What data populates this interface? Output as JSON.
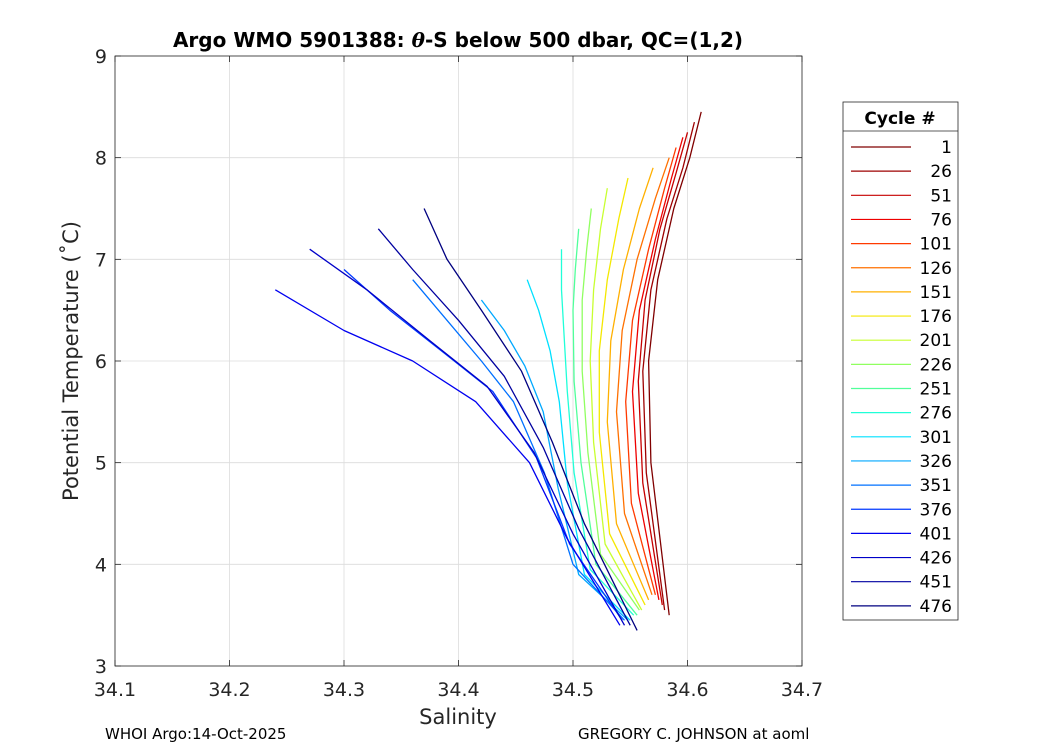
{
  "chart_data": {
    "type": "line",
    "title_prefix": "Argo WMO 5901388: ",
    "title_theta": "θ",
    "title_suffix": "-S below 500 dbar,  QC=(1,2)",
    "xlabel": "Salinity",
    "ylabel": "Potential Temperature (˚C)",
    "xlim": [
      34.1,
      34.7
    ],
    "ylim": [
      3,
      9
    ],
    "xticks": [
      34.1,
      34.2,
      34.3,
      34.4,
      34.5,
      34.6,
      34.7
    ],
    "xtick_labels": [
      "34.1",
      "34.2",
      "34.3",
      "34.4",
      "34.5",
      "34.6",
      "34.7"
    ],
    "yticks": [
      3,
      4,
      5,
      6,
      7,
      8,
      9
    ],
    "ytick_labels": [
      "3",
      "4",
      "5",
      "6",
      "7",
      "8",
      "9"
    ],
    "grid": true,
    "legend_title": "Cycle #",
    "legend_position": "right-outside",
    "legend": [
      {
        "label": "1",
        "color": "#800000"
      },
      {
        "label": "26",
        "color": "#9e0000"
      },
      {
        "label": "51",
        "color": "#c60000"
      },
      {
        "label": "76",
        "color": "#ee0000"
      },
      {
        "label": "101",
        "color": "#ff3a00"
      },
      {
        "label": "126",
        "color": "#ff7000"
      },
      {
        "label": "151",
        "color": "#ffb000"
      },
      {
        "label": "176",
        "color": "#f4e800"
      },
      {
        "label": "201",
        "color": "#c8ff30"
      },
      {
        "label": "226",
        "color": "#90ff60"
      },
      {
        "label": "251",
        "color": "#50ff9a"
      },
      {
        "label": "276",
        "color": "#20ffd8"
      },
      {
        "label": "301",
        "color": "#00e0ff"
      },
      {
        "label": "326",
        "color": "#00a8ff"
      },
      {
        "label": "351",
        "color": "#0070ff"
      },
      {
        "label": "376",
        "color": "#0038ff"
      },
      {
        "label": "401",
        "color": "#0000f0"
      },
      {
        "label": "426",
        "color": "#0000c8"
      },
      {
        "label": "451",
        "color": "#0000a0"
      },
      {
        "label": "476",
        "color": "#000080"
      }
    ],
    "series": [
      {
        "name": "1",
        "color": "#800000",
        "x": [
          34.612,
          34.602,
          34.588,
          34.574,
          34.566,
          34.568,
          34.584
        ],
        "y": [
          8.45,
          8.0,
          7.5,
          6.8,
          6.0,
          5.0,
          3.5
        ]
      },
      {
        "name": "26",
        "color": "#9e0000",
        "x": [
          34.606,
          34.596,
          34.582,
          34.568,
          34.561,
          34.564,
          34.58
        ],
        "y": [
          8.35,
          7.9,
          7.4,
          6.7,
          5.9,
          4.9,
          3.55
        ]
      },
      {
        "name": "51",
        "color": "#c60000",
        "x": [
          34.6,
          34.59,
          34.576,
          34.563,
          34.557,
          34.561,
          34.578
        ],
        "y": [
          8.25,
          7.85,
          7.3,
          6.6,
          5.8,
          4.8,
          3.6
        ]
      },
      {
        "name": "76",
        "color": "#ee0000",
        "x": [
          34.596,
          34.586,
          34.572,
          34.558,
          34.552,
          34.557,
          34.575
        ],
        "y": [
          8.2,
          7.8,
          7.2,
          6.5,
          5.7,
          4.7,
          3.65
        ]
      },
      {
        "name": "101",
        "color": "#ff3a00",
        "x": [
          34.59,
          34.58,
          34.566,
          34.552,
          34.546,
          34.551,
          34.572
        ],
        "y": [
          8.1,
          7.7,
          7.1,
          6.4,
          5.6,
          4.6,
          3.7
        ]
      },
      {
        "name": "126",
        "color": "#ff7000",
        "x": [
          34.584,
          34.572,
          34.556,
          34.543,
          34.538,
          34.545,
          34.569
        ],
        "y": [
          8.0,
          7.6,
          7.0,
          6.3,
          5.5,
          4.5,
          3.7
        ]
      },
      {
        "name": "151",
        "color": "#ffb000",
        "x": [
          34.57,
          34.558,
          34.544,
          34.533,
          34.53,
          34.538,
          34.566
        ],
        "y": [
          7.9,
          7.5,
          6.9,
          6.2,
          5.4,
          4.4,
          3.65
        ]
      },
      {
        "name": "176",
        "color": "#f4e800",
        "x": [
          34.548,
          34.54,
          34.53,
          34.523,
          34.523,
          34.532,
          34.563
        ],
        "y": [
          7.8,
          7.4,
          6.8,
          6.1,
          5.3,
          4.3,
          3.6
        ]
      },
      {
        "name": "201",
        "color": "#c8ff30",
        "x": [
          34.53,
          34.524,
          34.518,
          34.515,
          34.518,
          34.528,
          34.56
        ],
        "y": [
          7.7,
          7.3,
          6.7,
          6.0,
          5.2,
          4.2,
          3.55
        ]
      },
      {
        "name": "226",
        "color": "#90ff60",
        "x": [
          34.516,
          34.512,
          34.508,
          34.508,
          34.513,
          34.524,
          34.558
        ],
        "y": [
          7.5,
          7.1,
          6.6,
          5.9,
          5.1,
          4.1,
          3.55
        ]
      },
      {
        "name": "251",
        "color": "#50ff9a",
        "x": [
          34.505,
          34.502,
          34.5,
          34.501,
          34.507,
          34.52,
          34.556
        ],
        "y": [
          7.3,
          6.9,
          6.5,
          5.8,
          5.0,
          4.0,
          3.5
        ]
      },
      {
        "name": "276",
        "color": "#20ffd8",
        "x": [
          34.49,
          34.49,
          34.492,
          34.495,
          34.501,
          34.515,
          34.553
        ],
        "y": [
          7.1,
          6.7,
          6.3,
          5.7,
          4.9,
          3.95,
          3.5
        ]
      },
      {
        "name": "301",
        "color": "#00e0ff",
        "x": [
          34.46,
          34.47,
          34.48,
          34.488,
          34.495,
          34.51,
          34.55
        ],
        "y": [
          6.8,
          6.5,
          6.1,
          5.6,
          4.8,
          3.9,
          3.45
        ]
      },
      {
        "name": "326",
        "color": "#00a8ff",
        "x": [
          34.42,
          34.44,
          34.458,
          34.474,
          34.487,
          34.505,
          34.548
        ],
        "y": [
          6.6,
          6.3,
          5.95,
          5.5,
          4.75,
          3.9,
          3.45
        ]
      },
      {
        "name": "351",
        "color": "#0070ff",
        "x": [
          34.36,
          34.39,
          34.42,
          34.448,
          34.475,
          34.5,
          34.545
        ],
        "y": [
          6.8,
          6.4,
          6.0,
          5.6,
          4.9,
          4.0,
          3.45
        ]
      },
      {
        "name": "376",
        "color": "#0038ff",
        "x": [
          34.3,
          34.34,
          34.385,
          34.43,
          34.468,
          34.497,
          34.543
        ],
        "y": [
          6.9,
          6.5,
          6.1,
          5.7,
          5.05,
          4.2,
          3.45
        ]
      },
      {
        "name": "401",
        "color": "#0000f0",
        "x": [
          34.24,
          34.3,
          34.36,
          34.415,
          34.462,
          34.495,
          34.541
        ],
        "y": [
          6.7,
          6.3,
          6.0,
          5.6,
          5.0,
          4.25,
          3.4
        ]
      },
      {
        "name": "426",
        "color": "#0000c8",
        "x": [
          34.27,
          34.32,
          34.375,
          34.425,
          34.466,
          34.5,
          34.545
        ],
        "y": [
          7.1,
          6.7,
          6.2,
          5.75,
          5.1,
          4.3,
          3.4
        ]
      },
      {
        "name": "451",
        "color": "#0000a0",
        "x": [
          34.33,
          34.36,
          34.4,
          34.44,
          34.474,
          34.505,
          34.55
        ],
        "y": [
          7.3,
          6.9,
          6.4,
          5.85,
          5.15,
          4.35,
          3.4
        ]
      },
      {
        "name": "476",
        "color": "#000080",
        "x": [
          34.37,
          34.39,
          34.42,
          34.455,
          34.482,
          34.51,
          34.556
        ],
        "y": [
          7.5,
          7.0,
          6.5,
          5.9,
          5.2,
          4.4,
          3.35
        ]
      }
    ]
  },
  "footer": {
    "left": "WHOI Argo:14-Oct-2025",
    "right": "GREGORY C. JOHNSON at aoml"
  }
}
